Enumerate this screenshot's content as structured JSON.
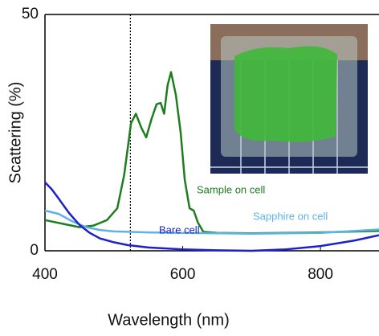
{
  "chart_data": {
    "type": "line",
    "xlabel": "Wavelength (nm)",
    "ylabel": "Scattering (%)",
    "xlim": [
      400,
      885
    ],
    "ylim": [
      0,
      50
    ],
    "xticks": [
      400,
      600,
      800
    ],
    "yticks": [
      0,
      50
    ],
    "vline": 524,
    "series": [
      {
        "name": "Sample on cell",
        "color": "#1e7d1e",
        "x": [
          400,
          430,
          450,
          470,
          490,
          505,
          515,
          525,
          532,
          540,
          547,
          555,
          562,
          568,
          573,
          578,
          583,
          590,
          597,
          603,
          610,
          616,
          622,
          630,
          650,
          700,
          800,
          885
        ],
        "values": [
          6.5,
          5.6,
          5.0,
          5.3,
          6.5,
          9,
          16,
          27,
          29,
          26,
          24,
          28,
          31,
          31.3,
          29,
          35,
          37.8,
          33,
          25,
          15,
          9,
          8.5,
          6,
          4,
          3.8,
          3.7,
          3.9,
          4.2
        ]
      },
      {
        "name": "Sapphire on cell",
        "color": "#5db3e6",
        "x": [
          400,
          420,
          440,
          460,
          480,
          500,
          550,
          600,
          700,
          800,
          885
        ],
        "values": [
          8.5,
          7.8,
          6.2,
          5.0,
          4.4,
          4.1,
          3.9,
          3.8,
          3.6,
          3.8,
          4.5
        ]
      },
      {
        "name": "Bare cell",
        "color": "#1f1fcc",
        "x": [
          400,
          410,
          420,
          435,
          450,
          465,
          480,
          500,
          520,
          550,
          600,
          650,
          700,
          750,
          800,
          850,
          885
        ],
        "values": [
          14.5,
          13,
          11,
          8,
          5.5,
          3.8,
          2.6,
          1.8,
          1.2,
          0.7,
          0.3,
          0.1,
          0,
          0.3,
          1.0,
          2.2,
          3.3
        ]
      }
    ]
  }
}
